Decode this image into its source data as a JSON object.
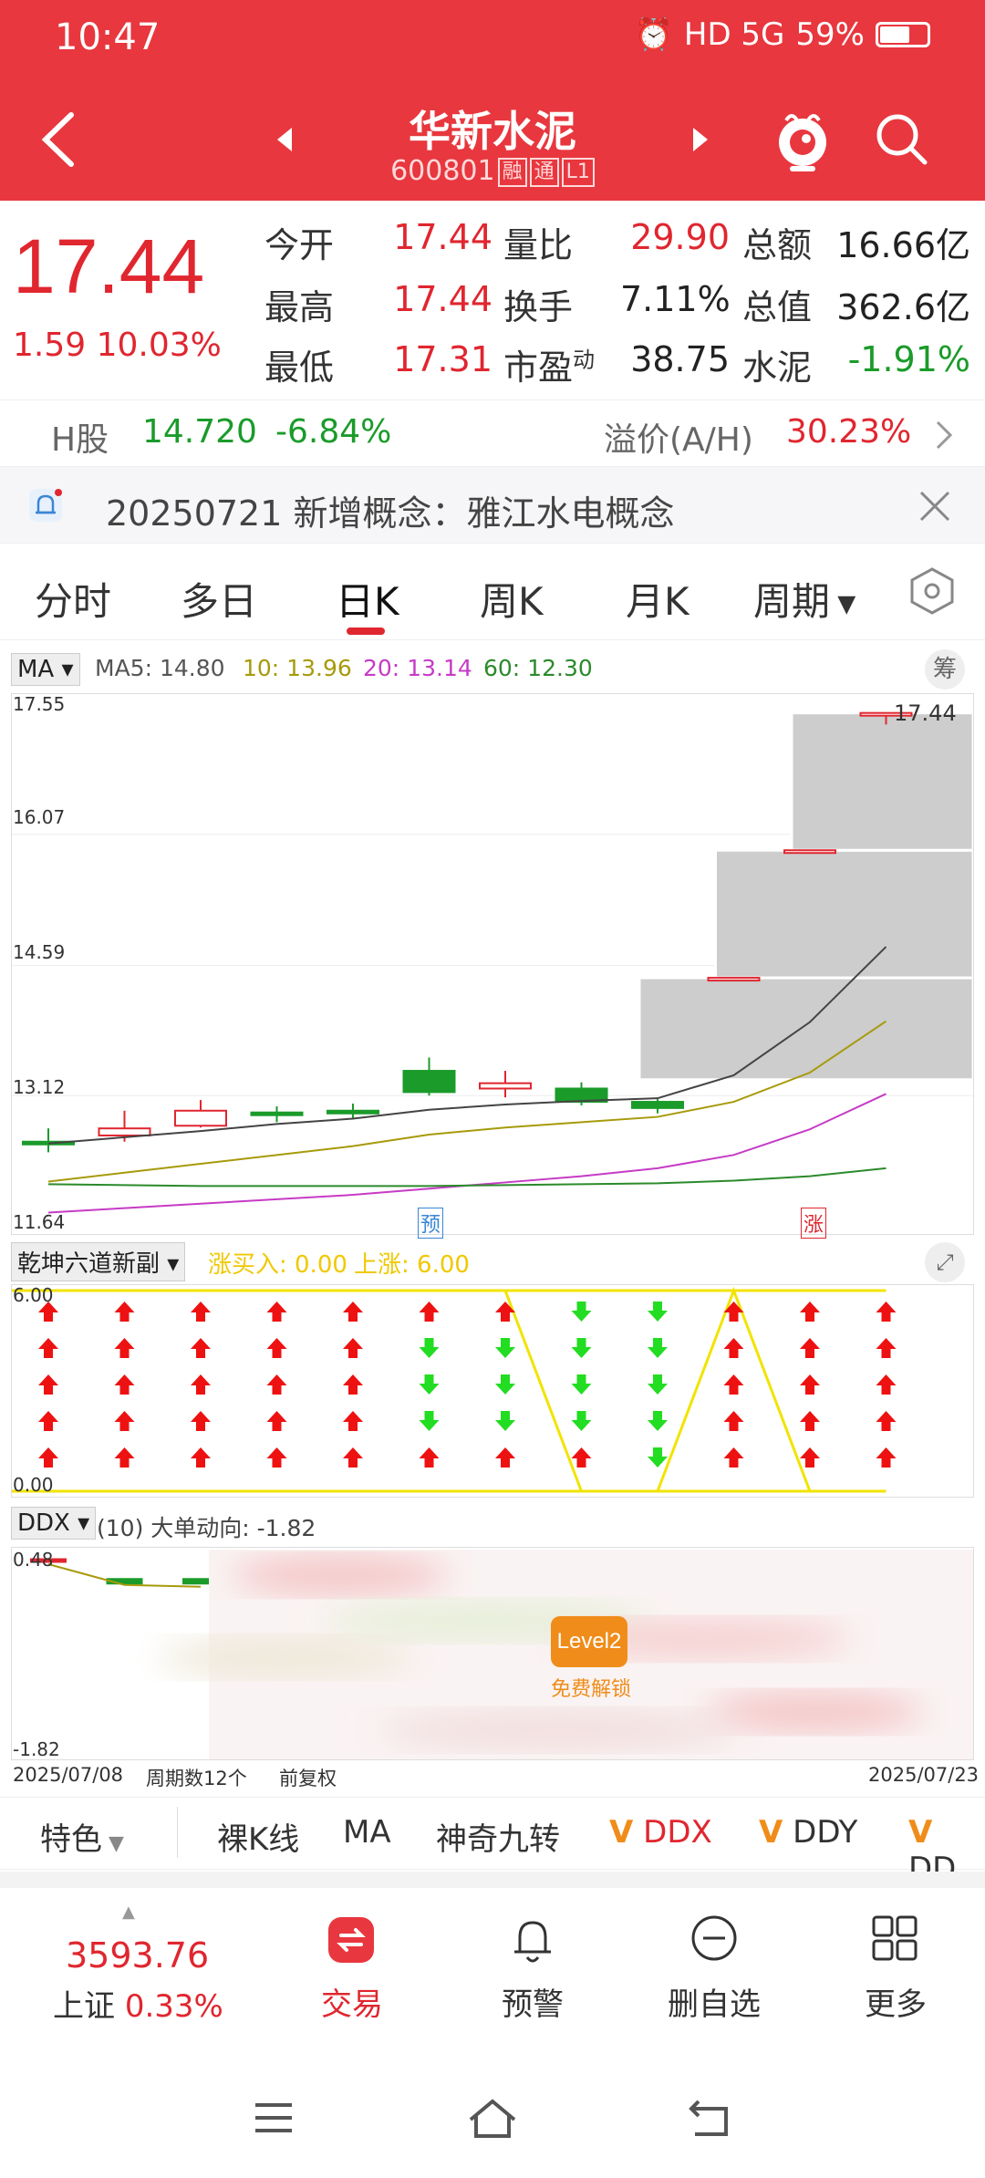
{
  "status_bar": {
    "time": "10:47",
    "indicators": "HD 5G",
    "battery": "59%"
  },
  "header": {
    "title": "华新水泥",
    "code": "600801",
    "tags": [
      "融",
      "通",
      "L1"
    ]
  },
  "quote": {
    "price": "17.44",
    "change": "1.59",
    "change_pct": "10.03%",
    "fields": [
      {
        "label": "今开",
        "value": "17.44"
      },
      {
        "label": "量比",
        "value": "29.90"
      },
      {
        "label": "总额",
        "value": "16.66亿"
      },
      {
        "label": "最高",
        "value": "17.44"
      },
      {
        "label": "换手",
        "value": "7.11%"
      },
      {
        "label": "总值",
        "value": "362.6亿"
      },
      {
        "label": "最低",
        "value": "17.31"
      },
      {
        "label": "市盈",
        "value": "38.75",
        "sup": "动"
      },
      {
        "label": "水泥",
        "value": "-1.91%"
      }
    ]
  },
  "h_share": {
    "label": "H股",
    "price": "14.720",
    "pct": "-6.84%",
    "premium_label": "溢价(A/H)",
    "premium": "30.23%"
  },
  "notice": {
    "text": "20250721 新增概念：雅江水电概念"
  },
  "tabs": [
    "分时",
    "多日",
    "日K",
    "周K",
    "月K",
    "周期"
  ],
  "ma_bar": {
    "select": "MA",
    "ma5": "MA5: 14.80",
    "ma10": "10: 13.96",
    "ma20": "20: 13.14",
    "ma60": "60: 12.30",
    "chip": "筹"
  },
  "main_axis": {
    "top": "17.55",
    "l2": "16.07",
    "l3": "14.59",
    "l4": "13.12",
    "bottom": "11.64",
    "last_price": "17.44",
    "marker_yu": "预",
    "marker_zhang": "涨"
  },
  "indicator1": {
    "select": "乾坤六道新副",
    "buy_label": "涨买入: 0.00",
    "up_label": "上涨: 6.00",
    "top": "6.00",
    "bottom": "0.00"
  },
  "indicator2": {
    "select": "DDX",
    "desc": "(10) 大单动向: -1.82",
    "top": "0.48",
    "bottom": "-1.82",
    "badge": "Level2",
    "unlock": "免费解锁"
  },
  "date_row": {
    "start": "2025/07/08",
    "count": "周期数12个",
    "adj": "前复权",
    "end": "2025/07/23"
  },
  "feature_bar": {
    "items": [
      "特色",
      "裸K线",
      "MA",
      "神奇九转",
      "DDX",
      "DDY",
      "DD"
    ]
  },
  "bottom_nav": {
    "index_value": "3593.76",
    "index_name": "上证",
    "index_pct": "0.33%",
    "trade": "交易",
    "alert": "预警",
    "remove": "删自选",
    "more": "更多"
  },
  "chart_data": {
    "type": "candlestick",
    "dates_start": "2025/07/08",
    "dates_end": "2025/07/23",
    "ylim": [
      11.64,
      17.55
    ],
    "candles": [
      {
        "o": 12.6,
        "c": 12.6,
        "h": 12.75,
        "l": 12.48,
        "dir": "down"
      },
      {
        "o": 12.75,
        "c": 12.67,
        "h": 12.95,
        "l": 12.6,
        "dir": "up"
      },
      {
        "o": 12.78,
        "c": 12.95,
        "h": 13.07,
        "l": 12.76,
        "dir": "up"
      },
      {
        "o": 12.93,
        "c": 12.9,
        "h": 13.0,
        "l": 12.82,
        "dir": "down"
      },
      {
        "o": 12.95,
        "c": 12.93,
        "h": 13.03,
        "l": 12.85,
        "dir": "down"
      },
      {
        "o": 13.4,
        "c": 13.16,
        "h": 13.55,
        "l": 13.12,
        "dir": "down"
      },
      {
        "o": 13.26,
        "c": 13.2,
        "h": 13.4,
        "l": 13.1,
        "dir": "up"
      },
      {
        "o": 13.2,
        "c": 13.05,
        "h": 13.27,
        "l": 13.01,
        "dir": "down"
      },
      {
        "o": 13.05,
        "c": 12.98,
        "h": 13.08,
        "l": 12.92,
        "dir": "down"
      },
      {
        "o": 14.45,
        "c": 14.45,
        "h": 14.45,
        "l": 14.45,
        "dir": "up"
      },
      {
        "o": 15.89,
        "c": 15.89,
        "h": 15.89,
        "l": 15.89,
        "dir": "up"
      },
      {
        "o": 17.44,
        "c": 17.44,
        "h": 17.44,
        "l": 17.31,
        "dir": "up"
      }
    ],
    "ma5": [
      12.58,
      12.65,
      12.72,
      12.8,
      12.86,
      12.96,
      13.02,
      13.06,
      13.09,
      13.35,
      13.95,
      14.8
    ],
    "ma10": [
      12.15,
      12.25,
      12.35,
      12.45,
      12.55,
      12.68,
      12.76,
      12.82,
      12.88,
      13.05,
      13.38,
      13.96
    ],
    "ma20": [
      11.8,
      11.85,
      11.9,
      11.95,
      12.0,
      12.07,
      12.14,
      12.21,
      12.3,
      12.45,
      12.74,
      13.14
    ],
    "ma60": [
      12.12,
      12.11,
      12.1,
      12.1,
      12.1,
      12.1,
      12.11,
      12.12,
      12.13,
      12.16,
      12.21,
      12.3
    ],
    "limit_boxes": [
      {
        "from": 8,
        "low": 13.3,
        "high": 14.45
      },
      {
        "from": 9,
        "low": 14.45,
        "high": 15.89
      },
      {
        "from": 10,
        "low": 15.89,
        "high": 17.44
      }
    ],
    "indicator_arrows": [
      "up",
      "up",
      "up",
      "up",
      "up",
      "mixed",
      "mixed",
      "down",
      "down",
      "up",
      "up",
      "up"
    ],
    "indicator_line": [
      6,
      6,
      6,
      6,
      6,
      6,
      6,
      0,
      0,
      6,
      0,
      0
    ],
    "ddx": [
      0.48,
      0.3,
      0.3
    ]
  }
}
